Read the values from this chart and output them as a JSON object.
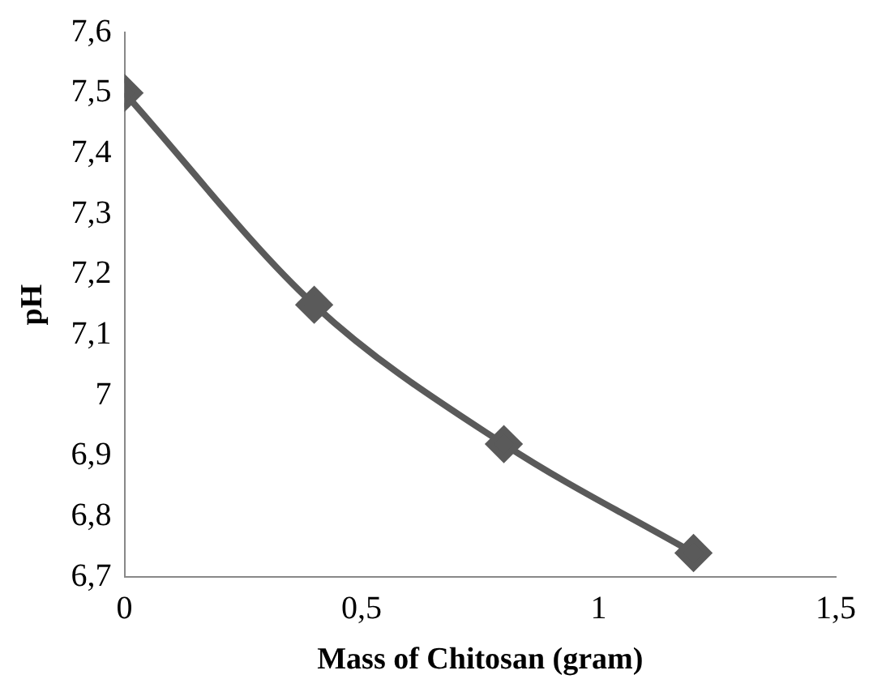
{
  "chart_data": {
    "type": "line",
    "xlabel": "Mass of Chitosan (gram)",
    "ylabel": "pH",
    "x": [
      0,
      0.4,
      0.8,
      1.2
    ],
    "series": [
      {
        "color": "#5a5a5a",
        "values": [
          7.5,
          7.15,
          6.92,
          6.74
        ]
      }
    ],
    "xlim": [
      0,
      1.5
    ],
    "xticks": [
      0,
      {
        "value": 0.5,
        "label": "0,5"
      },
      1,
      {
        "value": 1.5,
        "label": "1,5"
      }
    ],
    "ylim": [
      6.7,
      7.6
    ],
    "yticks": [
      {
        "value": 6.7,
        "label": "6,7"
      },
      {
        "value": 6.8,
        "label": "6,8"
      },
      {
        "value": 6.9,
        "label": "6,9"
      },
      7,
      {
        "value": 7.1,
        "label": "7,1"
      },
      {
        "value": 7.2,
        "label": "7,2"
      },
      {
        "value": 7.3,
        "label": "7,3"
      },
      {
        "value": 7.4,
        "label": "7,4"
      },
      {
        "value": 7.5,
        "label": "7,5"
      },
      {
        "value": 7.6,
        "label": "7,6"
      }
    ],
    "marker": "diamond",
    "line_style": "solid",
    "grid": false,
    "legend": false
  }
}
